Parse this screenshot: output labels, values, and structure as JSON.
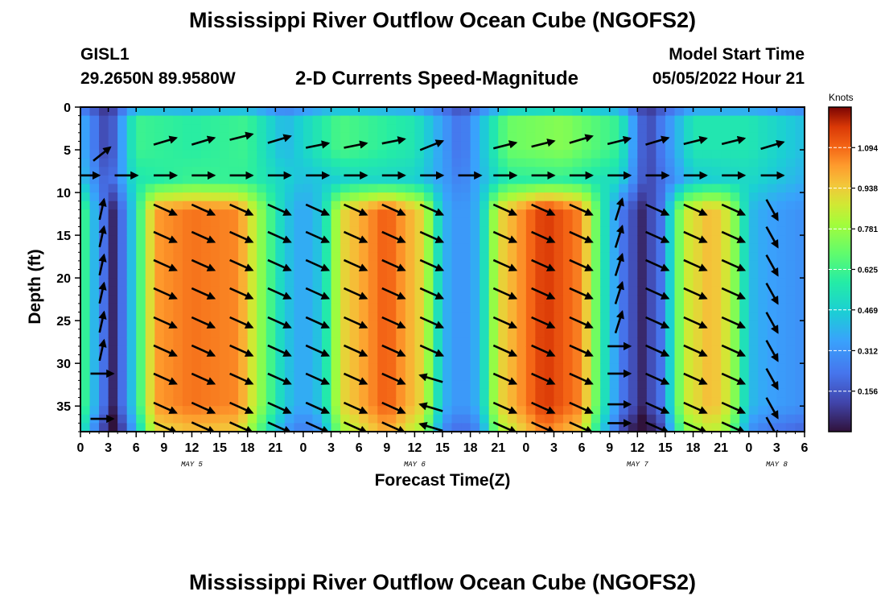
{
  "chart_data": {
    "type": "heatmap",
    "title": "Mississippi River Outflow Ocean Cube (NGOFS2)",
    "station": "GISL1",
    "location": "29.2650N  89.9580W",
    "subtitle": "2-D Currents Speed-Magnitude",
    "model_start_label": "Model Start Time",
    "model_start_value": "05/05/2022 Hour 21",
    "xlabel": "Forecast Time(Z)",
    "ylabel": "Depth (ft)",
    "xlim": [
      0,
      78
    ],
    "ylim": [
      38,
      0
    ],
    "x_ticks": [
      0,
      3,
      6,
      9,
      12,
      15,
      18,
      21,
      24,
      27,
      30,
      33,
      36,
      39,
      42,
      45,
      48,
      51,
      54,
      57,
      60,
      63,
      66,
      69,
      72,
      75,
      78
    ],
    "x_tick_labels": [
      "0",
      "3",
      "6",
      "9",
      "12",
      "15",
      "18",
      "21",
      "0",
      "3",
      "6",
      "9",
      "12",
      "15",
      "18",
      "21",
      "0",
      "3",
      "6",
      "9",
      "12",
      "15",
      "18",
      "21",
      "0",
      "3",
      "6"
    ],
    "y_ticks": [
      0,
      5,
      10,
      15,
      20,
      25,
      30,
      35
    ],
    "y_tick_labels": [
      "0",
      "5",
      "10",
      "15",
      "20",
      "25",
      "30",
      "35"
    ],
    "date_labels": [
      {
        "label": "MAY 5",
        "hour": 12
      },
      {
        "label": "MAY 6",
        "hour": 36
      },
      {
        "label": "MAY 7",
        "hour": 60
      },
      {
        "label": "MAY 8",
        "hour": 75
      }
    ],
    "colorbar": {
      "units": "Knots",
      "ticks": [
        "0.156",
        "0.312",
        "0.469",
        "0.625",
        "0.781",
        "0.938",
        "1.094"
      ],
      "tick_values": [
        0.156,
        0.312,
        0.469,
        0.625,
        0.781,
        0.938,
        1.094
      ],
      "range": [
        0,
        1.25
      ]
    },
    "near_surface_speed": [
      [
        0,
        0.4
      ],
      [
        3,
        0.08
      ],
      [
        6,
        0.62
      ],
      [
        12,
        0.58
      ],
      [
        18,
        0.62
      ],
      [
        22,
        0.4
      ],
      [
        28,
        0.65
      ],
      [
        36,
        0.55
      ],
      [
        41,
        0.2
      ],
      [
        46,
        0.7
      ],
      [
        52,
        0.75
      ],
      [
        58,
        0.6
      ],
      [
        61,
        0.1
      ],
      [
        66,
        0.55
      ],
      [
        72,
        0.55
      ],
      [
        78,
        0.42
      ]
    ],
    "mid_layer_speed": [
      [
        0,
        0.45
      ],
      [
        3,
        0.15
      ],
      [
        6,
        0.55
      ],
      [
        12,
        0.62
      ],
      [
        18,
        0.6
      ],
      [
        24,
        0.42
      ],
      [
        30,
        0.5
      ],
      [
        36,
        0.48
      ],
      [
        41,
        0.25
      ],
      [
        46,
        0.58
      ],
      [
        52,
        0.6
      ],
      [
        58,
        0.5
      ],
      [
        61,
        0.1
      ],
      [
        66,
        0.45
      ],
      [
        72,
        0.5
      ],
      [
        78,
        0.38
      ]
    ],
    "deep_speed": [
      [
        0,
        0.7
      ],
      [
        2,
        0.3
      ],
      [
        3.5,
        0.05
      ],
      [
        5,
        0.3
      ],
      [
        8,
        1.02
      ],
      [
        12,
        1.08
      ],
      [
        17,
        1.05
      ],
      [
        19.5,
        0.75
      ],
      [
        22,
        0.45
      ],
      [
        24,
        0.35
      ],
      [
        26,
        0.45
      ],
      [
        28,
        0.9
      ],
      [
        33,
        1.12
      ],
      [
        37,
        0.9
      ],
      [
        39,
        0.4
      ],
      [
        41,
        0.3
      ],
      [
        43,
        0.4
      ],
      [
        45,
        0.9
      ],
      [
        50,
        1.18
      ],
      [
        54,
        1.05
      ],
      [
        56,
        0.6
      ],
      [
        58.5,
        0.22
      ],
      [
        60.5,
        0.05
      ],
      [
        62.5,
        0.22
      ],
      [
        65,
        0.85
      ],
      [
        68,
        0.98
      ],
      [
        70,
        0.85
      ],
      [
        72,
        0.42
      ],
      [
        74,
        0.35
      ],
      [
        78,
        0.3
      ]
    ],
    "vectors": [
      {
        "x": 2.3,
        "y": 5.5,
        "u": 0.15,
        "v": 0.12
      },
      {
        "x": 9.1,
        "y": 4.0,
        "u": 0.2,
        "v": 0.06
      },
      {
        "x": 13.2,
        "y": 4.0,
        "u": 0.2,
        "v": 0.06
      },
      {
        "x": 17.3,
        "y": 3.5,
        "u": 0.2,
        "v": 0.05
      },
      {
        "x": 21.4,
        "y": 3.8,
        "u": 0.2,
        "v": 0.06
      },
      {
        "x": 25.5,
        "y": 4.5,
        "u": 0.2,
        "v": 0.04
      },
      {
        "x": 29.6,
        "y": 4.5,
        "u": 0.2,
        "v": 0.04
      },
      {
        "x": 33.7,
        "y": 4.0,
        "u": 0.2,
        "v": 0.04
      },
      {
        "x": 37.8,
        "y": 4.5,
        "u": 0.2,
        "v": 0.08
      },
      {
        "x": 45.7,
        "y": 4.5,
        "u": 0.2,
        "v": 0.05
      },
      {
        "x": 49.8,
        "y": 4.3,
        "u": 0.2,
        "v": 0.05
      },
      {
        "x": 53.9,
        "y": 3.8,
        "u": 0.2,
        "v": 0.06
      },
      {
        "x": 58.0,
        "y": 4.0,
        "u": 0.2,
        "v": 0.05
      },
      {
        "x": 62.1,
        "y": 4.0,
        "u": 0.2,
        "v": 0.06
      },
      {
        "x": 66.2,
        "y": 4.0,
        "u": 0.2,
        "v": 0.05
      },
      {
        "x": 70.3,
        "y": 4.0,
        "u": 0.2,
        "v": 0.05
      },
      {
        "x": 74.5,
        "y": 4.5,
        "u": 0.2,
        "v": 0.06
      },
      {
        "x": 0.8,
        "y": 8.0,
        "u": 0.2,
        "v": 0.0
      },
      {
        "x": 4.9,
        "y": 8.0,
        "u": 0.2,
        "v": 0.0
      },
      {
        "x": 9.1,
        "y": 8.0,
        "u": 0.2,
        "v": 0.0
      },
      {
        "x": 13.2,
        "y": 8.0,
        "u": 0.2,
        "v": 0.0
      },
      {
        "x": 17.3,
        "y": 8.0,
        "u": 0.2,
        "v": 0.0
      },
      {
        "x": 21.4,
        "y": 8.0,
        "u": 0.2,
        "v": 0.0
      },
      {
        "x": 25.5,
        "y": 8.0,
        "u": 0.2,
        "v": 0.0
      },
      {
        "x": 29.6,
        "y": 8.0,
        "u": 0.2,
        "v": 0.0
      },
      {
        "x": 33.7,
        "y": 8.0,
        "u": 0.2,
        "v": 0.0
      },
      {
        "x": 37.8,
        "y": 8.0,
        "u": 0.2,
        "v": 0.0
      },
      {
        "x": 41.9,
        "y": 8.0,
        "u": 0.2,
        "v": 0.0
      },
      {
        "x": 45.7,
        "y": 8.0,
        "u": 0.2,
        "v": 0.0
      },
      {
        "x": 49.8,
        "y": 8.0,
        "u": 0.2,
        "v": 0.0
      },
      {
        "x": 53.9,
        "y": 8.0,
        "u": 0.2,
        "v": 0.0
      },
      {
        "x": 58.0,
        "y": 8.0,
        "u": 0.2,
        "v": 0.0
      },
      {
        "x": 62.1,
        "y": 8.0,
        "u": 0.2,
        "v": 0.0
      },
      {
        "x": 66.2,
        "y": 8.0,
        "u": 0.2,
        "v": 0.0
      },
      {
        "x": 70.3,
        "y": 8.0,
        "u": 0.2,
        "v": 0.0
      },
      {
        "x": 74.5,
        "y": 8.0,
        "u": 0.2,
        "v": 0.0
      },
      {
        "x": 2.3,
        "y": 31.2,
        "u": 0.2,
        "v": 0.0
      },
      {
        "x": 2.3,
        "y": 36.5,
        "u": 0.2,
        "v": 0.0
      },
      {
        "x": 58.0,
        "y": 28.0,
        "u": 0.2,
        "v": 0.0
      },
      {
        "x": 58.0,
        "y": 31.2,
        "u": 0.2,
        "v": 0.0
      },
      {
        "x": 58.0,
        "y": 34.8,
        "u": 0.2,
        "v": 0.0
      },
      {
        "x": 58.0,
        "y": 37.0,
        "u": 0.2,
        "v": 0.0
      }
    ]
  }
}
